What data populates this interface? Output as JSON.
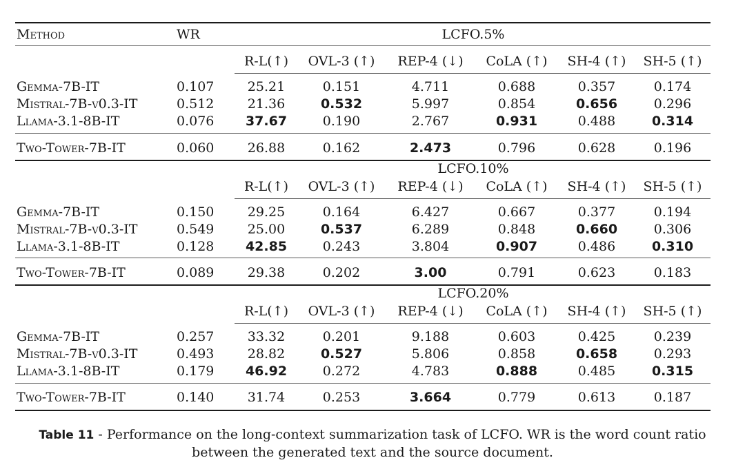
{
  "header": {
    "method": "Method",
    "wr": "WR",
    "groups": [
      "LCFO.5%",
      "LCFO.10%",
      "LCFO.20%"
    ],
    "metrics": [
      "R-L(↑)",
      "OVL-3 (↑)",
      "REP-4 (↓)",
      "CoLA (↑)",
      "SH-4 (↑)",
      "SH-5 (↑)"
    ]
  },
  "sections": [
    {
      "rows": [
        {
          "model": "Gemma-7B-IT",
          "wr": "0.107",
          "vals": [
            "25.21",
            "0.151",
            "4.711",
            "0.688",
            "0.357",
            "0.174"
          ],
          "bold": []
        },
        {
          "model": "Mistral-7B-v0.3-IT",
          "wr": "0.512",
          "vals": [
            "21.36",
            "0.532",
            "5.997",
            "0.854",
            "0.656",
            "0.296"
          ],
          "bold": [
            1,
            4
          ]
        },
        {
          "model": "Llama-3.1-8B-IT",
          "wr": "0.076",
          "vals": [
            "37.67",
            "0.190",
            "2.767",
            "0.931",
            "0.488",
            "0.314"
          ],
          "bold": [
            0,
            3,
            5
          ]
        },
        {
          "model": "Two-Tower-7B-IT",
          "wr": "0.060",
          "vals": [
            "26.88",
            "0.162",
            "2.473",
            "0.796",
            "0.628",
            "0.196"
          ],
          "bold": [
            2
          ]
        }
      ]
    },
    {
      "rows": [
        {
          "model": "Gemma-7B-IT",
          "wr": "0.150",
          "vals": [
            "29.25",
            "0.164",
            "6.427",
            "0.667",
            "0.377",
            "0.194"
          ],
          "bold": []
        },
        {
          "model": "Mistral-7B-v0.3-IT",
          "wr": "0.549",
          "vals": [
            "25.00",
            "0.537",
            "6.289",
            "0.848",
            "0.660",
            "0.306"
          ],
          "bold": [
            1,
            4
          ]
        },
        {
          "model": "Llama-3.1-8B-IT",
          "wr": "0.128",
          "vals": [
            "42.85",
            "0.243",
            "3.804",
            "0.907",
            "0.486",
            "0.310"
          ],
          "bold": [
            0,
            3,
            5
          ]
        },
        {
          "model": "Two-Tower-7B-IT",
          "wr": "0.089",
          "vals": [
            "29.38",
            "0.202",
            "3.00",
            "0.791",
            "0.623",
            "0.183"
          ],
          "bold": [
            2
          ]
        }
      ]
    },
    {
      "rows": [
        {
          "model": "Gemma-7B-IT",
          "wr": "0.257",
          "vals": [
            "33.32",
            "0.201",
            "9.188",
            "0.603",
            "0.425",
            "0.239"
          ],
          "bold": []
        },
        {
          "model": "Mistral-7B-v0.3-IT",
          "wr": "0.493",
          "vals": [
            "28.82",
            "0.527",
            "5.806",
            "0.858",
            "0.658",
            "0.293"
          ],
          "bold": [
            1,
            4
          ]
        },
        {
          "model": "Llama-3.1-8B-IT",
          "wr": "0.179",
          "vals": [
            "46.92",
            "0.272",
            "4.783",
            "0.888",
            "0.485",
            "0.315"
          ],
          "bold": [
            0,
            3,
            5
          ]
        },
        {
          "model": "Two-Tower-7B-IT",
          "wr": "0.140",
          "vals": [
            "31.74",
            "0.253",
            "3.664",
            "0.779",
            "0.613",
            "0.187"
          ],
          "bold": [
            2
          ]
        }
      ]
    }
  ],
  "caption": {
    "label": "Table 11",
    "text": " - Performance on the long-context summarization task of LCFO. WR is the word count ratio",
    "text2": "between the generated text and the source document."
  }
}
